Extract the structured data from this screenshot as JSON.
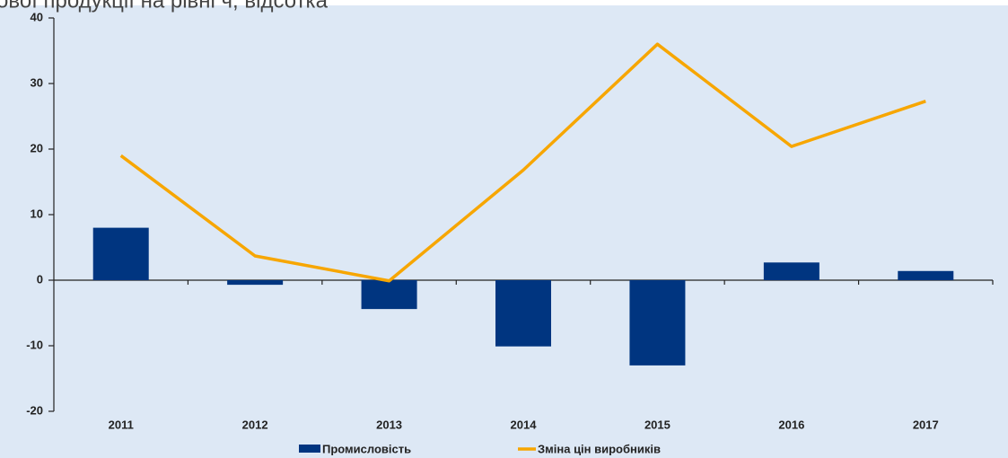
{
  "chart_data": {
    "type": "bar_line",
    "title": "ової продукції на рівні ч, відсотка",
    "categories": [
      "2011",
      "2012",
      "2013",
      "2014",
      "2015",
      "2016",
      "2017"
    ],
    "series": [
      {
        "name": "Промисловість",
        "type": "bar",
        "color": "#003580",
        "values": [
          8,
          -0.7,
          -4.4,
          -10.1,
          -13,
          2.7,
          1.4
        ]
      },
      {
        "name": "Зміна цін виробників",
        "type": "line",
        "color": "#f7a600",
        "values": [
          19,
          3.7,
          -0.1,
          16.8,
          36,
          20.4,
          27.3
        ]
      }
    ],
    "ylim": [
      -20,
      40
    ],
    "yticks": [
      -20,
      -10,
      0,
      10,
      20,
      30,
      40
    ],
    "legend": "bottom"
  }
}
